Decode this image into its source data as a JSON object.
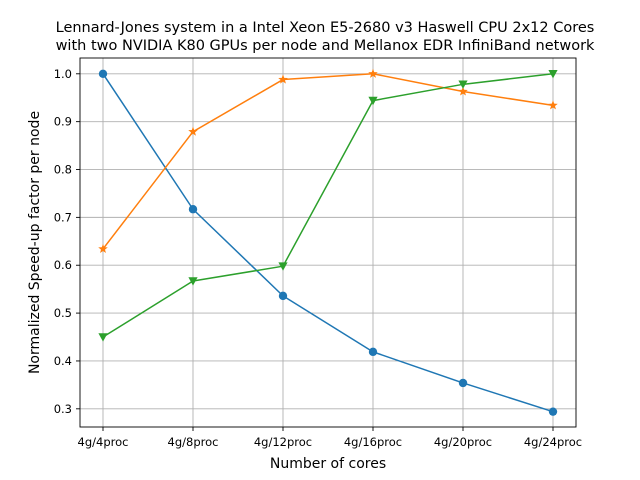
{
  "chart_data": {
    "type": "line",
    "title_line1": "Lennard-Jones system in a Intel Xeon E5-2680 v3 Haswell CPU 2x12 Cores",
    "title_line2": "with two NVIDIA K80 GPUs per node and Mellanox EDR InfiniBand network",
    "xlabel": "Number of cores",
    "ylabel": "Normalized Speed-up factor per node",
    "categories": [
      "4g/4proc",
      "4g/8proc",
      "4g/12proc",
      "4g/16proc",
      "4g/20proc",
      "4g/24proc"
    ],
    "ylim": [
      0.262,
      1.033
    ],
    "yticks": [
      "0.3",
      "0.4",
      "0.5",
      "0.6",
      "0.7",
      "0.8",
      "0.9",
      "1.0"
    ],
    "grid": true,
    "series": [
      {
        "color": "#1f77b4",
        "marker": "circle",
        "values": [
          1.0,
          0.717,
          0.536,
          0.419,
          0.354,
          0.294
        ]
      },
      {
        "color": "#ff7f0e",
        "marker": "star",
        "values": [
          0.634,
          0.879,
          0.988,
          1.0,
          0.963,
          0.934
        ]
      },
      {
        "color": "#2ca02c",
        "marker": "triangle-down",
        "values": [
          0.45,
          0.567,
          0.598,
          0.944,
          0.978,
          1.0
        ]
      }
    ]
  }
}
